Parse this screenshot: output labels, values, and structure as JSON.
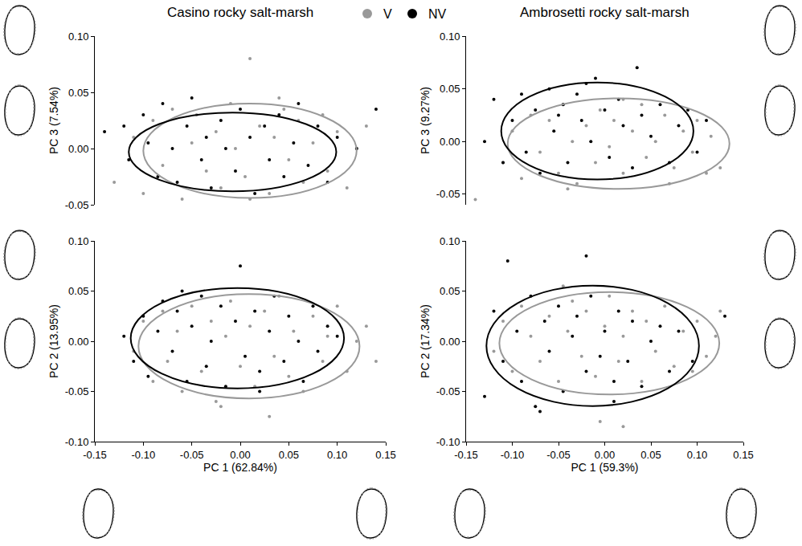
{
  "chart_data": [
    {
      "type": "scatter",
      "title": "Casino rocky salt-marsh",
      "ylabel": "PC 3 (7.54%)",
      "legend": "top",
      "tick_labels": "y",
      "xlim": [
        -0.15,
        0.15
      ],
      "ylim": [
        -0.05,
        0.1
      ],
      "yticks": [
        -0.05,
        {
          "value": 0,
          "label": "0.00"
        },
        0.05,
        {
          "value": 0.1,
          "label": "0.10"
        }
      ],
      "series": [
        {
          "name": "V",
          "color": "#999999",
          "marker": "circle",
          "x": [
            -0.13,
            -0.11,
            -0.1,
            -0.09,
            -0.08,
            -0.07,
            -0.06,
            -0.05,
            -0.045,
            -0.035,
            -0.025,
            -0.02,
            -0.01,
            -0.005,
            0.005,
            0.01,
            0.02,
            0.03,
            0.035,
            0.045,
            0.05,
            0.06,
            0.065,
            0.075,
            0.085,
            0.09,
            0.1,
            0.11,
            0.12,
            0.13,
            0.01,
            0.04
          ],
          "values": [
            -0.03,
            0.01,
            -0.04,
            0.025,
            -0.015,
            0.035,
            -0.045,
            0.005,
            0.03,
            -0.02,
            0.015,
            -0.035,
            0.04,
            0.0,
            -0.025,
            0.08,
            0.02,
            -0.04,
            0.01,
            0.035,
            -0.01,
            0.025,
            -0.03,
            0.005,
            0.03,
            -0.02,
            0.015,
            -0.035,
            0.0,
            0.02,
            -0.045,
            0.045
          ]
        },
        {
          "name": "NV",
          "color": "#000000",
          "marker": "circle",
          "x": [
            -0.14,
            -0.12,
            -0.115,
            -0.1,
            -0.095,
            -0.085,
            -0.08,
            -0.07,
            -0.065,
            -0.055,
            -0.05,
            -0.04,
            -0.035,
            -0.03,
            -0.02,
            -0.015,
            -0.005,
            0.0,
            0.01,
            0.015,
            0.025,
            0.03,
            0.04,
            0.045,
            0.055,
            0.06,
            0.07,
            0.08,
            0.09,
            0.1,
            0.12,
            0.14
          ],
          "values": [
            0.015,
            0.02,
            -0.01,
            0.03,
            0.005,
            -0.025,
            0.04,
            0.0,
            -0.03,
            0.02,
            0.045,
            -0.01,
            0.01,
            -0.035,
            0.025,
            0.0,
            -0.02,
            0.035,
            0.01,
            -0.04,
            0.02,
            -0.01,
            0.03,
            -0.025,
            0.005,
            0.04,
            -0.015,
            0.02,
            -0.03,
            0.01,
            0.0,
            0.035
          ]
        }
      ],
      "ellipses": [
        {
          "series": "V",
          "center": [
            0.01,
            -0.002
          ],
          "radii": [
            0.11,
            0.042
          ]
        },
        {
          "series": "NV",
          "center": [
            -0.008,
            -0.003
          ],
          "radii": [
            0.107,
            0.035
          ]
        }
      ]
    },
    {
      "type": "scatter",
      "title": "Ambrosetti rocky salt-marsh",
      "ylabel": "PC 3 (9.27%)",
      "tick_labels": "y",
      "xlim": [
        -0.15,
        0.15
      ],
      "ylim": [
        -0.06,
        0.1
      ],
      "yticks": [
        -0.05,
        {
          "value": 0,
          "label": "0.00"
        },
        0.05,
        {
          "value": 0.1,
          "label": "0.10"
        }
      ],
      "series": [
        {
          "name": "V",
          "color": "#999999",
          "marker": "circle",
          "x": [
            -0.11,
            -0.1,
            -0.09,
            -0.08,
            -0.07,
            -0.06,
            -0.05,
            -0.045,
            -0.035,
            -0.03,
            -0.02,
            -0.01,
            -0.005,
            0.005,
            0.01,
            0.02,
            0.03,
            0.04,
            0.045,
            0.055,
            0.065,
            0.075,
            0.085,
            0.095,
            0.1,
            0.11,
            0.115,
            0.125,
            -0.14,
            0.07,
            0.02,
            -0.04
          ],
          "values": [
            -0.02,
            0.01,
            -0.035,
            0.025,
            -0.01,
            0.02,
            -0.03,
            0.035,
            0.0,
            -0.04,
            0.015,
            -0.02,
            0.03,
            -0.005,
            0.02,
            -0.03,
            0.01,
            0.035,
            -0.015,
            0.0,
            0.025,
            -0.025,
            0.01,
            -0.01,
            0.02,
            -0.03,
            0.005,
            -0.025,
            -0.055,
            -0.04,
            0.04,
            -0.045
          ]
        },
        {
          "name": "NV",
          "color": "#000000",
          "marker": "circle",
          "x": [
            -0.13,
            -0.12,
            -0.11,
            -0.1,
            -0.09,
            -0.085,
            -0.075,
            -0.07,
            -0.06,
            -0.055,
            -0.045,
            -0.04,
            -0.03,
            -0.025,
            -0.015,
            -0.01,
            0.0,
            0.005,
            0.015,
            0.02,
            0.03,
            0.04,
            0.05,
            0.06,
            0.07,
            0.08,
            0.09,
            0.1,
            0.11,
            -0.02,
            -0.05,
            0.035
          ],
          "values": [
            0.0,
            0.04,
            -0.02,
            0.02,
            0.045,
            -0.01,
            0.03,
            -0.03,
            0.05,
            0.01,
            0.035,
            -0.02,
            0.045,
            0.02,
            0.0,
            0.06,
            0.03,
            -0.015,
            0.04,
            0.015,
            -0.025,
            0.025,
            0.005,
            0.035,
            -0.02,
            0.015,
            0.03,
            -0.01,
            0.02,
            0.055,
            0.025,
            0.07
          ]
        }
      ],
      "ellipses": [
        {
          "series": "V",
          "center": [
            0.015,
            -0.002
          ],
          "radii": [
            0.12,
            0.043
          ]
        },
        {
          "series": "NV",
          "center": [
            -0.008,
            0.01
          ],
          "radii": [
            0.104,
            0.046
          ]
        }
      ]
    },
    {
      "type": "scatter",
      "xlabel": "PC 1 (62.84%)",
      "ylabel": "PC 2 (13.95%)",
      "xlim": [
        -0.15,
        0.15
      ],
      "ylim": [
        -0.1,
        0.1
      ],
      "xticks": [
        -0.15,
        {
          "value": -0.1,
          "label": "-0.10"
        },
        -0.05,
        {
          "value": 0,
          "label": "0.00"
        },
        0.05,
        {
          "value": 0.1,
          "label": "0.10"
        },
        0.15
      ],
      "yticks": [
        {
          "value": -0.1,
          "label": "-0.10"
        },
        -0.05,
        {
          "value": 0,
          "label": "0.00"
        },
        0.05,
        {
          "value": 0.1,
          "label": "0.10"
        }
      ],
      "series": [
        {
          "name": "V",
          "color": "#999999",
          "marker": "circle",
          "x": [
            -0.11,
            -0.1,
            -0.09,
            -0.08,
            -0.075,
            -0.065,
            -0.06,
            -0.05,
            -0.04,
            -0.03,
            -0.025,
            -0.015,
            -0.01,
            0.0,
            0.01,
            0.015,
            0.025,
            0.035,
            0.04,
            0.05,
            0.055,
            0.065,
            0.075,
            0.085,
            0.09,
            0.1,
            0.11,
            0.12,
            0.13,
            0.14,
            0.03,
            -0.02
          ],
          "values": [
            -0.01,
            0.02,
            -0.04,
            0.03,
            -0.02,
            0.01,
            -0.05,
            0.035,
            -0.03,
            0.02,
            -0.06,
            0.005,
            0.04,
            -0.025,
            0.015,
            -0.045,
            0.03,
            -0.015,
            0.045,
            -0.035,
            0.01,
            -0.05,
            0.025,
            -0.02,
            0.005,
            0.035,
            -0.03,
            0.0,
            0.015,
            -0.02,
            -0.075,
            -0.065
          ]
        },
        {
          "name": "NV",
          "color": "#000000",
          "marker": "circle",
          "x": [
            -0.12,
            -0.11,
            -0.1,
            -0.095,
            -0.085,
            -0.08,
            -0.07,
            -0.065,
            -0.055,
            -0.05,
            -0.04,
            -0.035,
            -0.03,
            -0.02,
            -0.015,
            -0.005,
            0.0,
            0.005,
            0.015,
            0.02,
            0.03,
            0.035,
            0.045,
            0.05,
            0.06,
            0.065,
            0.075,
            0.08,
            0.09,
            0.1,
            0.02,
            -0.06
          ],
          "values": [
            0.005,
            -0.02,
            0.025,
            -0.035,
            0.01,
            0.04,
            -0.01,
            0.03,
            -0.04,
            0.015,
            0.045,
            -0.025,
            0.0,
            0.035,
            -0.045,
            0.02,
            0.075,
            -0.015,
            0.03,
            -0.03,
            0.01,
            0.045,
            -0.02,
            0.025,
            0.0,
            -0.04,
            0.035,
            -0.01,
            0.015,
            0.005,
            -0.05,
            0.05
          ]
        }
      ],
      "ellipses": [
        {
          "series": "V",
          "center": [
            0.009,
            -0.005
          ],
          "radii": [
            0.114,
            0.052
          ]
        },
        {
          "series": "NV",
          "center": [
            -0.003,
            0.003
          ],
          "radii": [
            0.11,
            0.05
          ]
        }
      ]
    },
    {
      "type": "scatter",
      "xlabel": "PC 1 (59.3%)",
      "ylabel": "PC 2 (17.34%)",
      "xlim": [
        -0.15,
        0.15
      ],
      "ylim": [
        -0.1,
        0.1
      ],
      "xticks": [
        -0.15,
        {
          "value": -0.1,
          "label": "-0.10"
        },
        -0.05,
        {
          "value": 0,
          "label": "0.00"
        },
        0.05,
        {
          "value": 0.1,
          "label": "0.10"
        },
        0.15
      ],
      "yticks": [
        {
          "value": -0.1,
          "label": "-0.10"
        },
        -0.05,
        {
          "value": 0,
          "label": "0.00"
        },
        0.05,
        {
          "value": 0.1,
          "label": "0.10"
        }
      ],
      "series": [
        {
          "name": "V",
          "color": "#999999",
          "marker": "circle",
          "x": [
            -0.12,
            -0.11,
            -0.1,
            -0.09,
            -0.08,
            -0.07,
            -0.06,
            -0.05,
            -0.04,
            -0.035,
            -0.025,
            -0.02,
            -0.01,
            0.0,
            0.005,
            0.015,
            0.02,
            0.03,
            0.04,
            0.045,
            0.055,
            0.065,
            0.075,
            0.085,
            0.095,
            0.1,
            0.11,
            0.12,
            0.125,
            -0.005,
            0.02,
            -0.045
          ],
          "values": [
            -0.01,
            0.02,
            -0.03,
            0.035,
            0.005,
            -0.02,
            0.025,
            -0.04,
            0.01,
            0.04,
            -0.015,
            0.03,
            -0.035,
            0.015,
            0.045,
            -0.02,
            0.005,
            0.03,
            -0.04,
            0.02,
            -0.01,
            0.035,
            -0.025,
            0.01,
            -0.03,
            0.02,
            -0.015,
            0.005,
            0.03,
            -0.08,
            -0.085,
            0.055
          ]
        },
        {
          "name": "NV",
          "color": "#000000",
          "marker": "circle",
          "x": [
            -0.13,
            -0.12,
            -0.11,
            -0.105,
            -0.095,
            -0.09,
            -0.08,
            -0.075,
            -0.065,
            -0.06,
            -0.05,
            -0.045,
            -0.035,
            -0.03,
            -0.02,
            -0.015,
            -0.005,
            0.0,
            0.01,
            0.015,
            0.025,
            0.03,
            0.04,
            0.05,
            0.06,
            0.07,
            0.08,
            0.095,
            0.13,
            -0.02,
            -0.07,
            0.01
          ],
          "values": [
            -0.055,
            0.03,
            -0.02,
            0.08,
            0.01,
            -0.04,
            0.045,
            -0.065,
            0.02,
            -0.01,
            0.035,
            -0.05,
            0.005,
            0.025,
            -0.03,
            0.045,
            -0.015,
            0.01,
            -0.04,
            0.03,
            -0.02,
            0.02,
            -0.045,
            0.0,
            0.015,
            -0.03,
            0.01,
            -0.02,
            0.025,
            0.085,
            -0.07,
            -0.06
          ]
        }
      ],
      "ellipses": [
        {
          "series": "V",
          "center": [
            0.005,
            -0.002
          ],
          "radii": [
            0.119,
            0.051
          ]
        },
        {
          "series": "NV",
          "center": [
            -0.013,
            -0.0045
          ],
          "radii": [
            0.115,
            0.06
          ]
        }
      ]
    }
  ]
}
